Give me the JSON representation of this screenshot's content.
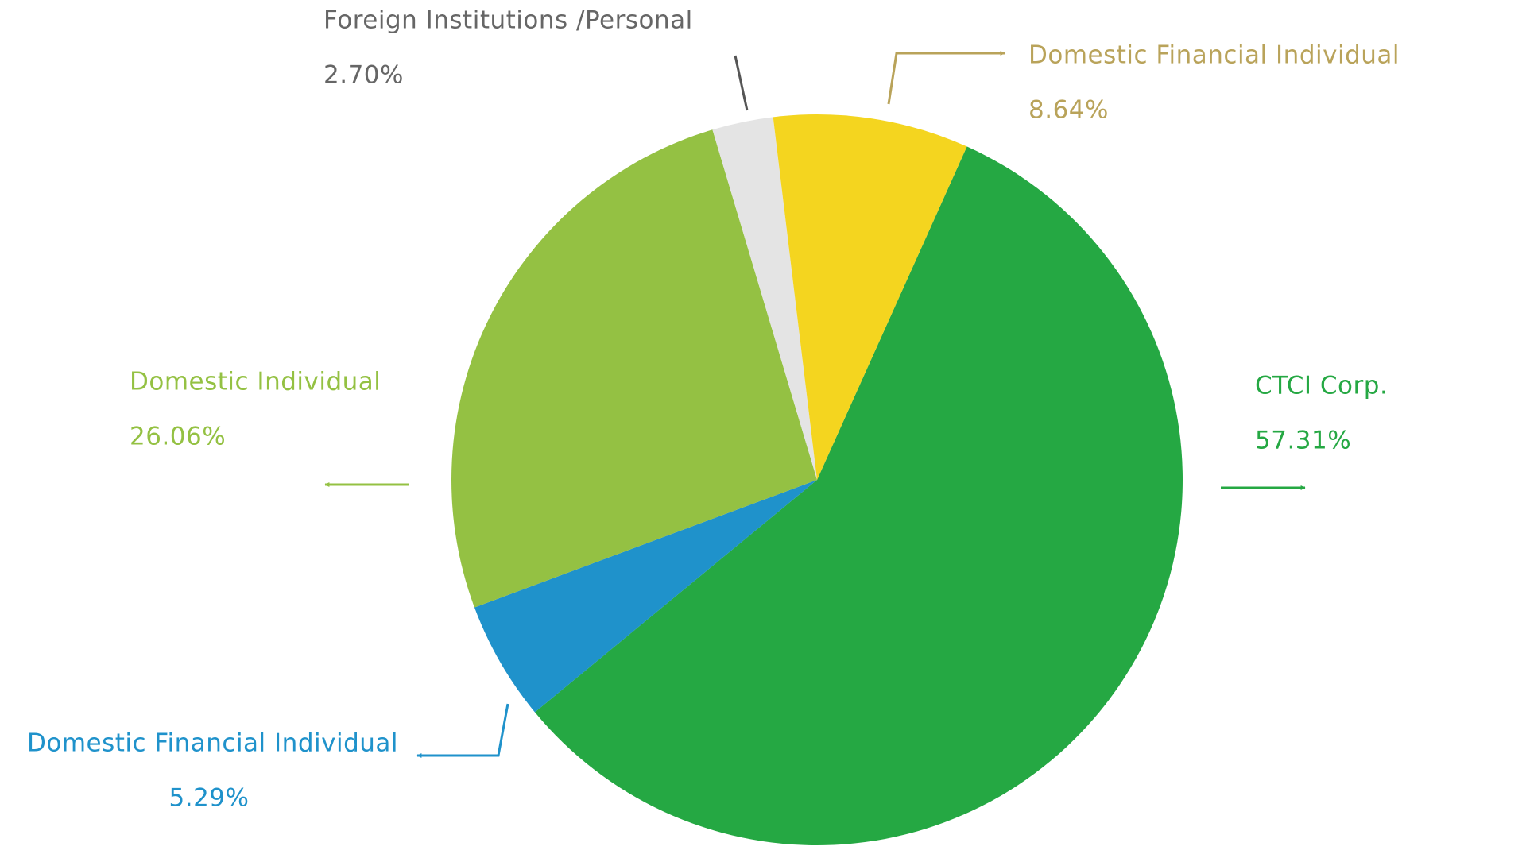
{
  "chart_data": {
    "type": "pie",
    "categories": [
      "CTCI Corp.",
      "Domestic Financial Individual",
      "Domestic Individual",
      "Foreign Institutions /Personal",
      "Domestic Financial Individual"
    ],
    "values": [
      57.31,
      5.29,
      26.06,
      2.7,
      8.64
    ],
    "value_labels": [
      "57.31%",
      "5.29%",
      "26.06%",
      "2.70%",
      "8.64%"
    ],
    "colors": [
      "#25a843",
      "#1f92cb",
      "#94c143",
      "#e4e4e4",
      "#f4d51f"
    ],
    "label_colors": [
      "#25a843",
      "#1f92cb",
      "#94c143",
      "#666666",
      "#b9a35a"
    ]
  }
}
